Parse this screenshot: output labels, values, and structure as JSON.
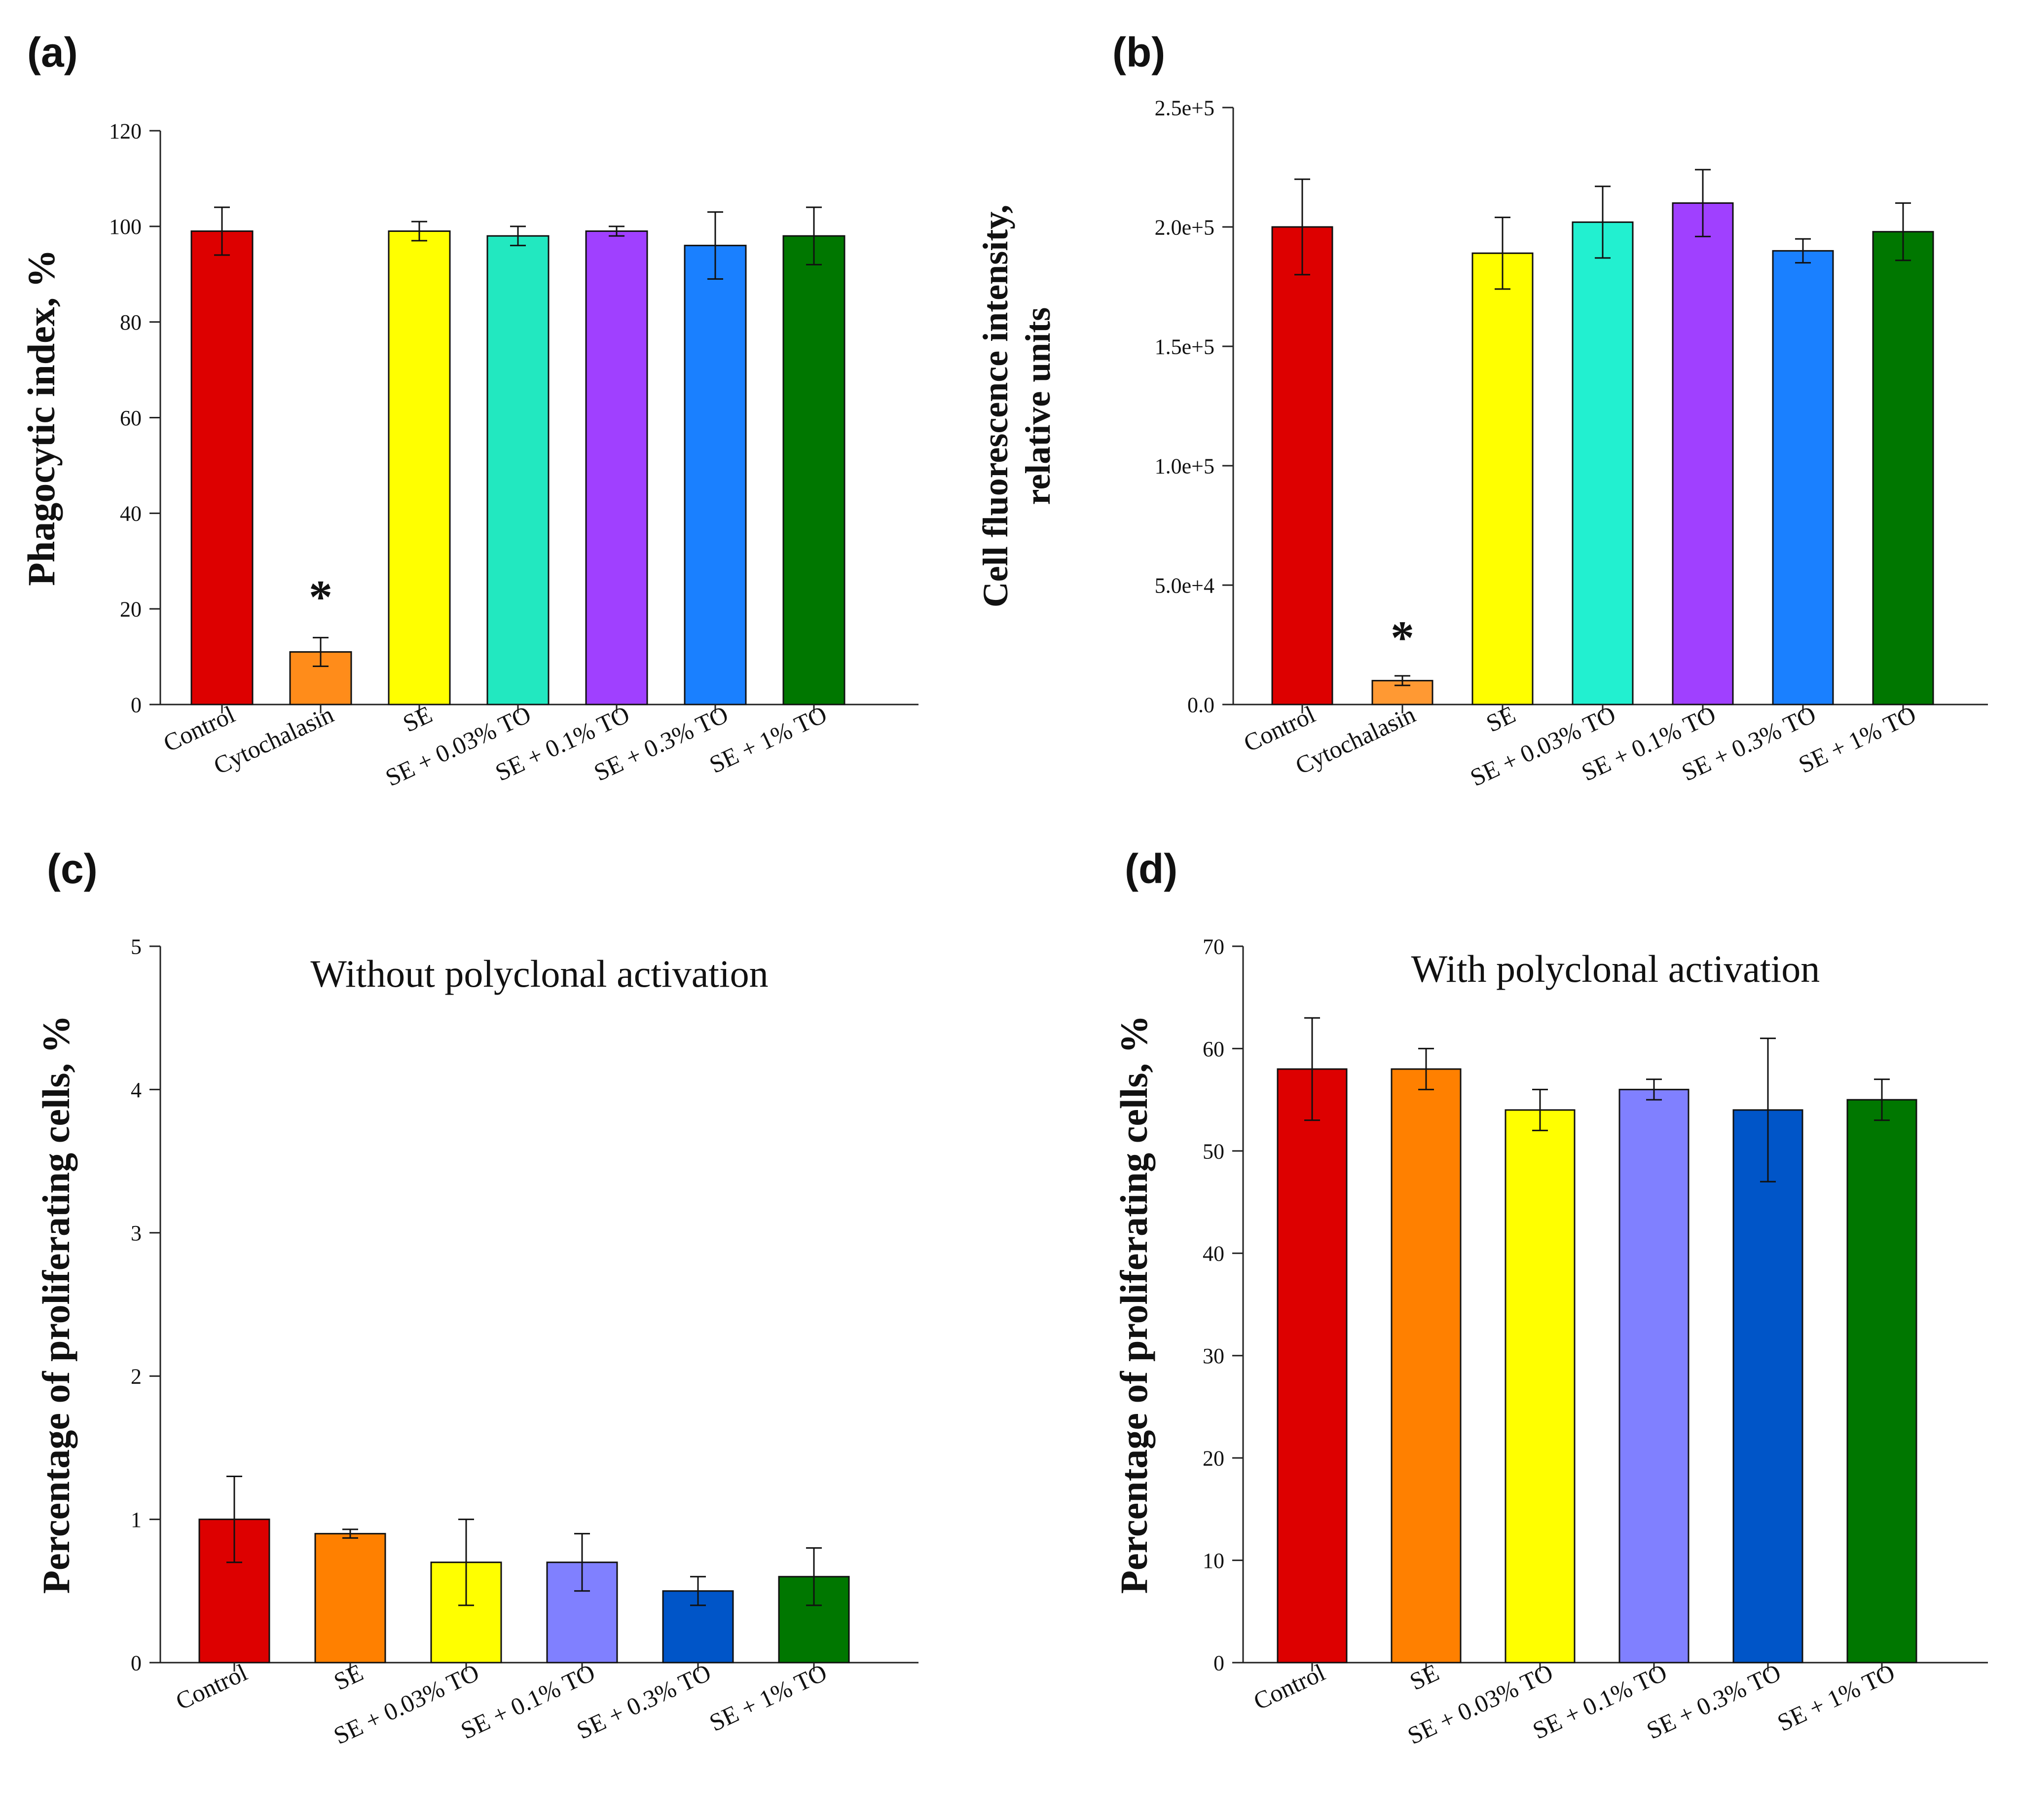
{
  "chart_data": [
    {
      "id": "a",
      "type": "bar",
      "panel_label": "(a)",
      "title": "",
      "xlabel": "",
      "ylabel": [
        "Phagocytic index, %"
      ],
      "ylim": [
        0,
        120
      ],
      "yticks": [
        0,
        20,
        40,
        60,
        80,
        100,
        120
      ],
      "ytick_labels": [
        "0",
        "20",
        "40",
        "60",
        "80",
        "100",
        "120"
      ],
      "categories": [
        "Control",
        "Cytochalasin",
        "SE",
        "SE + 0.03% TO",
        "SE + 0.1% TO",
        "SE + 0.3% TO",
        "SE + 1% TO"
      ],
      "values": [
        99,
        11,
        99,
        98,
        99,
        96,
        98
      ],
      "errors": [
        5,
        3,
        2,
        2,
        1,
        7,
        6
      ],
      "colors": [
        "#dd0000",
        "#ff8c1a",
        "#ffff00",
        "#22e8c0",
        "#a040ff",
        "#1a80ff",
        "#007700"
      ],
      "annotations": [
        {
          "category": "Cytochalasin",
          "text": "*"
        }
      ],
      "grid": false
    },
    {
      "id": "b",
      "type": "bar",
      "panel_label": "(b)",
      "title": "",
      "xlabel": "",
      "ylabel": [
        "Cell fluorescence intensity,",
        "relative units"
      ],
      "ylim": [
        0,
        250000
      ],
      "yticks": [
        0,
        50000,
        100000,
        150000,
        200000,
        250000
      ],
      "ytick_labels": [
        "0.0",
        "5.0e+4",
        "1.0e+5",
        "1.5e+5",
        "2.0e+5",
        "2.5e+5"
      ],
      "categories": [
        "Control",
        "Cytochalasin",
        "SE",
        "SE + 0.03% TO",
        "SE + 0.1% TO",
        "SE + 0.3% TO",
        "SE + 1% TO"
      ],
      "values": [
        200000,
        10000,
        189000,
        202000,
        210000,
        190000,
        198000
      ],
      "errors": [
        20000,
        2000,
        15000,
        15000,
        14000,
        5000,
        12000
      ],
      "colors": [
        "#dd0000",
        "#ff9933",
        "#ffff00",
        "#22f0d0",
        "#a040ff",
        "#1a80ff",
        "#007700"
      ],
      "annotations": [
        {
          "category": "Cytochalasin",
          "text": "*"
        }
      ],
      "grid": false
    },
    {
      "id": "c",
      "type": "bar",
      "panel_label": "(c)",
      "title": "Without polyclonal activation",
      "xlabel": "",
      "ylabel": [
        "Percentage of proliferating cells, %"
      ],
      "ylim": [
        0,
        5
      ],
      "yticks": [
        0,
        1,
        2,
        3,
        4,
        5
      ],
      "ytick_labels": [
        "0",
        "1",
        "2",
        "3",
        "4",
        "5"
      ],
      "categories": [
        "Control",
        "SE",
        "SE + 0.03% TO",
        "SE + 0.1% TO",
        "SE + 0.3% TO",
        "SE + 1% TO"
      ],
      "values": [
        1.0,
        0.9,
        0.7,
        0.7,
        0.5,
        0.6
      ],
      "errors": [
        0.3,
        0.03,
        0.3,
        0.2,
        0.1,
        0.2
      ],
      "colors": [
        "#dd0000",
        "#ff8000",
        "#ffff00",
        "#8080ff",
        "#0055c8",
        "#007700"
      ],
      "annotations": [],
      "grid": false
    },
    {
      "id": "d",
      "type": "bar",
      "panel_label": "(d)",
      "title": "With polyclonal activation",
      "xlabel": "",
      "ylabel": [
        "Percentage of proliferating cells, %"
      ],
      "ylim": [
        0,
        70
      ],
      "yticks": [
        0,
        10,
        20,
        30,
        40,
        50,
        60,
        70
      ],
      "ytick_labels": [
        "0",
        "10",
        "20",
        "30",
        "40",
        "50",
        "60",
        "70"
      ],
      "categories": [
        "Control",
        "SE",
        "SE + 0.03% TO",
        "SE + 0.1% TO",
        "SE + 0.3% TO",
        "SE + 1% TO"
      ],
      "values": [
        58,
        58,
        54,
        56,
        54,
        55
      ],
      "errors": [
        5,
        2,
        2,
        1,
        7,
        2
      ],
      "colors": [
        "#dd0000",
        "#ff8000",
        "#ffff00",
        "#8080ff",
        "#0055c8",
        "#007700"
      ],
      "annotations": [],
      "grid": false
    }
  ]
}
